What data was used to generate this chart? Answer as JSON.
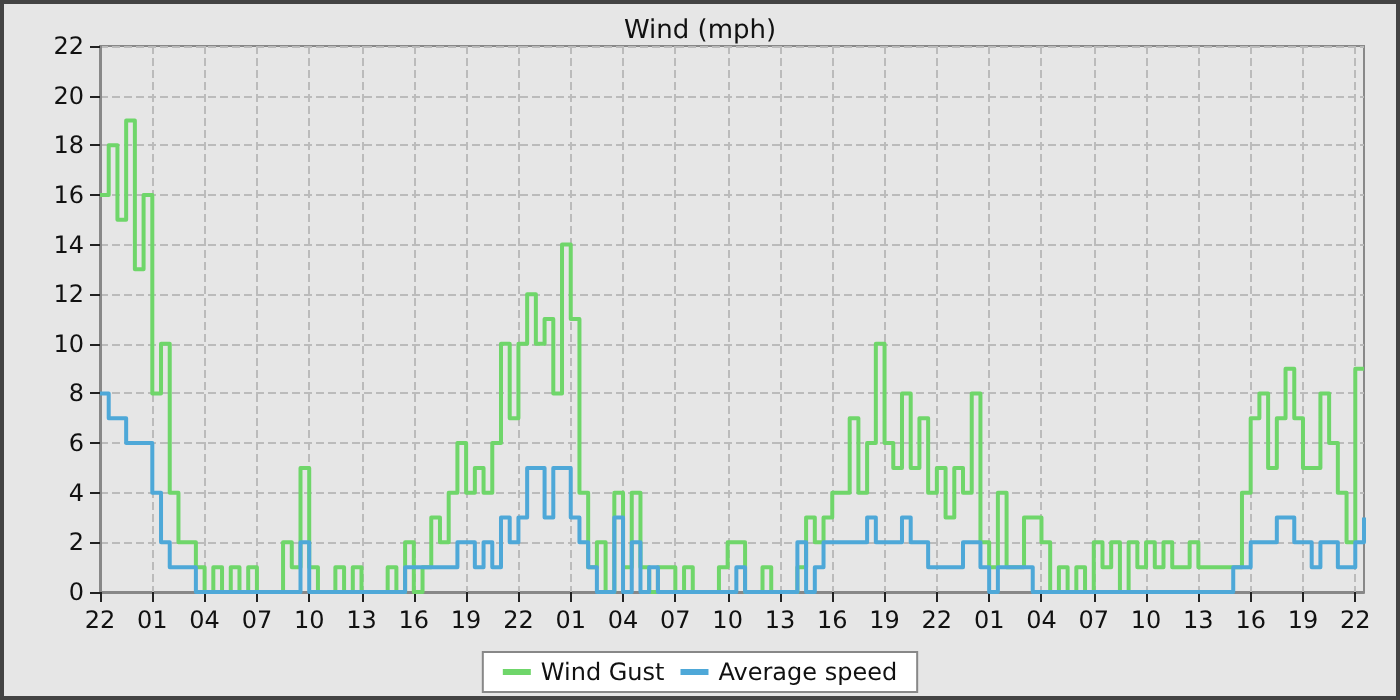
{
  "chart_data": {
    "type": "step",
    "title": "Wind (mph)",
    "categories": [
      "22",
      null,
      null,
      null,
      null,
      null,
      "01",
      null,
      null,
      null,
      null,
      null,
      "04",
      null,
      null,
      null,
      null,
      null,
      "07",
      null,
      null,
      null,
      null,
      null,
      "10",
      null,
      null,
      null,
      null,
      null,
      "13",
      null,
      null,
      null,
      null,
      null,
      "16",
      null,
      null,
      null,
      null,
      null,
      "19",
      null,
      null,
      null,
      null,
      null,
      "22",
      null,
      null,
      null,
      null,
      null,
      "01",
      null,
      null,
      null,
      null,
      null,
      "04",
      null,
      null,
      null,
      null,
      null,
      "07",
      null,
      null,
      null,
      null,
      null,
      "10",
      null,
      null,
      null,
      null,
      null,
      "13",
      null,
      null,
      null,
      null,
      null,
      "16",
      null,
      null,
      null,
      null,
      null,
      "19",
      null,
      null,
      null,
      null,
      null,
      "22",
      null,
      null,
      null,
      null,
      null,
      "01",
      null,
      null,
      null,
      null,
      null,
      "04",
      null,
      null,
      null,
      null,
      null,
      "07",
      null,
      null,
      null,
      null,
      null,
      "10",
      null,
      null,
      null,
      null,
      null,
      "13",
      null,
      null,
      null,
      null,
      null,
      "16",
      null,
      null,
      null,
      null,
      null,
      "19",
      null,
      null,
      null,
      null,
      null,
      "22",
      null
    ],
    "ylim": [
      0,
      22
    ],
    "yticks": [
      0,
      2,
      4,
      6,
      8,
      10,
      12,
      14,
      16,
      18,
      20,
      22
    ],
    "grid": true,
    "legend": "bottom",
    "series": [
      {
        "name": "Wind Gust",
        "color": "#6fd66a",
        "values": [
          16,
          18,
          15,
          19,
          13,
          16,
          8,
          10,
          4,
          2,
          2,
          1,
          0,
          1,
          0,
          1,
          0,
          1,
          0,
          0,
          0,
          2,
          1,
          5,
          1,
          0,
          0,
          1,
          0,
          1,
          0,
          0,
          0,
          1,
          0,
          2,
          0,
          1,
          3,
          2,
          4,
          6,
          4,
          5,
          4,
          6,
          10,
          7,
          10,
          12,
          10,
          11,
          8,
          14,
          11,
          4,
          1,
          2,
          0,
          4,
          1,
          4,
          1,
          0,
          1,
          1,
          0,
          1,
          0,
          0,
          0,
          1,
          2,
          2,
          0,
          0,
          1,
          0,
          0,
          0,
          1,
          3,
          2,
          3,
          4,
          4,
          7,
          4,
          6,
          10,
          6,
          5,
          8,
          5,
          7,
          4,
          5,
          3,
          5,
          4,
          8,
          2,
          1,
          4,
          1,
          1,
          3,
          3,
          2,
          0,
          1,
          0,
          1,
          0,
          2,
          1,
          2,
          0,
          2,
          1,
          2,
          1,
          2,
          1,
          1,
          2,
          1,
          1,
          1,
          1,
          1,
          4,
          7,
          8,
          5,
          7,
          9,
          7,
          5,
          5,
          8,
          6,
          4,
          2,
          9,
          9
        ]
      },
      {
        "name": "Average speed",
        "color": "#4ea8d8",
        "values": [
          8,
          7,
          7,
          6,
          6,
          6,
          4,
          2,
          1,
          1,
          1,
          0,
          0,
          0,
          0,
          0,
          0,
          0,
          0,
          0,
          0,
          0,
          0,
          2,
          0,
          0,
          0,
          0,
          0,
          0,
          0,
          0,
          0,
          0,
          0,
          1,
          1,
          1,
          1,
          1,
          1,
          2,
          2,
          1,
          2,
          1,
          3,
          2,
          3,
          5,
          5,
          3,
          5,
          5,
          3,
          2,
          1,
          0,
          0,
          3,
          0,
          2,
          0,
          1,
          0,
          0,
          0,
          0,
          0,
          0,
          0,
          0,
          0,
          1,
          0,
          0,
          0,
          0,
          0,
          0,
          2,
          0,
          1,
          2,
          2,
          2,
          2,
          2,
          3,
          2,
          2,
          2,
          3,
          2,
          2,
          1,
          1,
          1,
          1,
          2,
          2,
          1,
          0,
          1,
          1,
          1,
          1,
          0,
          0,
          0,
          0,
          0,
          0,
          0,
          0,
          0,
          0,
          0,
          0,
          0,
          0,
          0,
          0,
          0,
          0,
          0,
          0,
          0,
          0,
          0,
          1,
          1,
          2,
          2,
          2,
          3,
          3,
          2,
          2,
          1,
          2,
          2,
          1,
          1,
          2,
          3
        ]
      }
    ]
  }
}
